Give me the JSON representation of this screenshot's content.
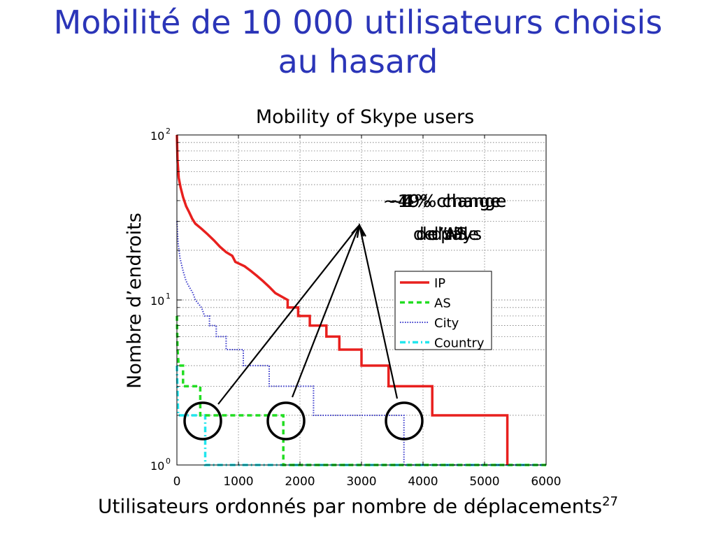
{
  "slide": {
    "title_line1": "Mobilité de 10 000 utilisateurs choisis",
    "title_line2": "au hasard",
    "xaxis_caption": "Utilisateurs ordonnés par nombre de déplacements",
    "page_number": "27",
    "yaxis_caption": "Nombre d’endroits"
  },
  "colors": {
    "title": "#2b35b8",
    "ip": "#e8201e",
    "as": "#22dd22",
    "city": "#3a3acb",
    "country": "#22e6ee"
  },
  "chart_data": {
    "type": "line",
    "title": "Mobility of Skype users",
    "xlabel": "Utilisateurs ordonnés par nombre de déplacements",
    "ylabel": "Nombre d’endroits",
    "xlim": [
      0,
      6000
    ],
    "ylim": [
      1,
      100
    ],
    "yscale": "log",
    "grid": true,
    "legend_position": "right",
    "x_ticks": [
      "0",
      "1000",
      "2000",
      "3000",
      "4000",
      "5000",
      "6000"
    ],
    "y_ticks": [
      {
        "base": "10",
        "exp": "0",
        "value": 1
      },
      {
        "base": "10",
        "exp": "1",
        "value": 10
      },
      {
        "base": "10",
        "exp": "2",
        "value": 100
      }
    ],
    "series": [
      {
        "name": "IP",
        "color": "#e8201e",
        "style": "solid",
        "points": [
          [
            0,
            100
          ],
          [
            10,
            70
          ],
          [
            30,
            55
          ],
          [
            60,
            48
          ],
          [
            100,
            42
          ],
          [
            150,
            37
          ],
          [
            200,
            34
          ],
          [
            250,
            31
          ],
          [
            300,
            29
          ],
          [
            400,
            27
          ],
          [
            500,
            25
          ],
          [
            600,
            23
          ],
          [
            700,
            21
          ],
          [
            800,
            19.5
          ],
          [
            900,
            18.5
          ],
          [
            950,
            17
          ],
          [
            1100,
            16
          ],
          [
            1200,
            15
          ],
          [
            1300,
            14
          ],
          [
            1400,
            13
          ],
          [
            1500,
            12
          ],
          [
            1600,
            11
          ],
          [
            1800,
            10
          ],
          [
            1800,
            9
          ],
          [
            1970,
            9
          ],
          [
            1970,
            8
          ],
          [
            2160,
            8
          ],
          [
            2160,
            7
          ],
          [
            2430,
            7
          ],
          [
            2430,
            6
          ],
          [
            2640,
            6
          ],
          [
            2640,
            5
          ],
          [
            3000,
            5
          ],
          [
            3000,
            4
          ],
          [
            3440,
            4
          ],
          [
            3440,
            3
          ],
          [
            4150,
            3
          ],
          [
            4150,
            2
          ],
          [
            5370,
            2
          ],
          [
            5370,
            1
          ]
        ]
      },
      {
        "name": "AS",
        "color": "#22dd22",
        "style": "dashed",
        "points": [
          [
            0,
            8
          ],
          [
            10,
            5
          ],
          [
            30,
            4
          ],
          [
            100,
            4
          ],
          [
            100,
            3
          ],
          [
            380,
            3
          ],
          [
            380,
            2
          ],
          [
            1730,
            2
          ],
          [
            1730,
            1
          ],
          [
            6000,
            1
          ]
        ]
      },
      {
        "name": "City",
        "color": "#3a3acb",
        "style": "dotted",
        "points": [
          [
            0,
            30
          ],
          [
            20,
            22
          ],
          [
            50,
            18
          ],
          [
            100,
            15
          ],
          [
            150,
            13
          ],
          [
            200,
            12
          ],
          [
            260,
            11
          ],
          [
            300,
            10
          ],
          [
            400,
            9
          ],
          [
            450,
            8
          ],
          [
            530,
            8
          ],
          [
            530,
            7
          ],
          [
            640,
            7
          ],
          [
            640,
            6
          ],
          [
            800,
            6
          ],
          [
            800,
            5
          ],
          [
            1080,
            5
          ],
          [
            1080,
            4
          ],
          [
            1500,
            4
          ],
          [
            1500,
            3
          ],
          [
            2220,
            3
          ],
          [
            2220,
            2
          ],
          [
            3690,
            2
          ],
          [
            3690,
            1
          ],
          [
            6000,
            1
          ]
        ]
      },
      {
        "name": "Country",
        "color": "#22e6ee",
        "style": "dashdot",
        "points": [
          [
            0,
            4
          ],
          [
            20,
            2
          ],
          [
            460,
            2
          ],
          [
            460,
            1
          ],
          [
            6000,
            1
          ]
        ]
      }
    ],
    "annotations": [
      "~49% change d’IP",
      "~19% change d’AS",
      "~4% change de ville",
      "~1% change de pays"
    ]
  }
}
